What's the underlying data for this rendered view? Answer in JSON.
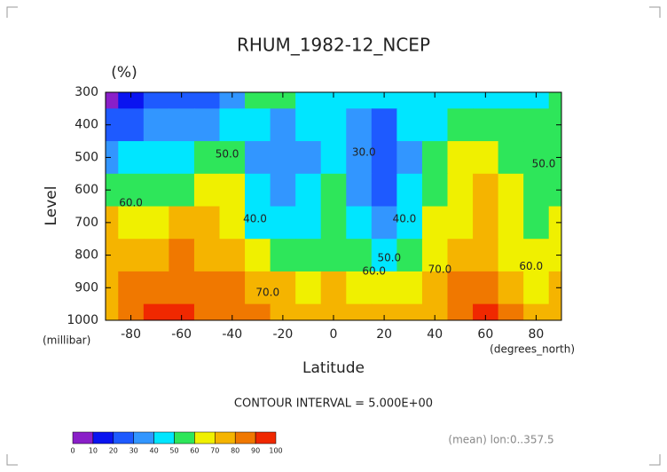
{
  "chart_data": {
    "type": "heatmap",
    "title": "RHUM_1982-12_NCEP",
    "unit": "(%)",
    "xlabel": "Latitude",
    "ylabel": "Level",
    "x_unit": "(degrees_north)",
    "y_unit": "(millibar)",
    "footnote": "CONTOUR INTERVAL = 5.000E+00",
    "note": "(mean) lon:0..357.5",
    "x": [
      -90,
      -80,
      -70,
      -60,
      -50,
      -40,
      -30,
      -20,
      -10,
      0,
      10,
      20,
      30,
      40,
      50,
      60,
      70,
      80,
      90
    ],
    "y": [
      300,
      400,
      500,
      600,
      700,
      800,
      900,
      1000
    ],
    "z": [
      [
        8,
        15,
        20,
        22,
        25,
        30,
        50,
        50,
        45,
        48,
        45,
        42,
        48,
        48,
        48,
        45,
        45,
        48,
        50
      ],
      [
        25,
        28,
        30,
        32,
        35,
        40,
        40,
        38,
        42,
        45,
        35,
        28,
        40,
        48,
        55,
        55,
        52,
        50,
        52
      ],
      [
        38,
        40,
        42,
        45,
        50,
        55,
        38,
        32,
        38,
        48,
        32,
        25,
        38,
        55,
        60,
        60,
        58,
        52,
        55
      ],
      [
        52,
        55,
        55,
        58,
        62,
        60,
        40,
        35,
        40,
        50,
        35,
        25,
        40,
        58,
        65,
        70,
        62,
        50,
        55
      ],
      [
        70,
        62,
        65,
        70,
        72,
        65,
        45,
        42,
        45,
        55,
        40,
        32,
        45,
        62,
        68,
        72,
        65,
        55,
        60
      ],
      [
        72,
        75,
        78,
        80,
        78,
        70,
        62,
        55,
        52,
        58,
        50,
        48,
        52,
        68,
        72,
        75,
        68,
        60,
        62
      ],
      [
        75,
        82,
        85,
        88,
        85,
        80,
        72,
        70,
        68,
        70,
        68,
        65,
        65,
        75,
        82,
        85,
        78,
        68,
        70
      ],
      [
        78,
        85,
        90,
        92,
        88,
        85,
        80,
        78,
        78,
        78,
        75,
        72,
        72,
        78,
        88,
        90,
        82,
        72,
        75
      ]
    ],
    "xlim": [
      -90,
      90
    ],
    "ylim": [
      1000,
      300
    ],
    "xticks": [
      -80,
      -60,
      -40,
      -20,
      0,
      20,
      40,
      60,
      80
    ],
    "yticks": [
      300,
      400,
      500,
      600,
      700,
      800,
      900,
      1000
    ],
    "levels": [
      0,
      10,
      20,
      30,
      40,
      50,
      60,
      70,
      80,
      90,
      100
    ],
    "colors": [
      "#8a1fc8",
      "#0a14f0",
      "#1e5aff",
      "#3296ff",
      "#00e6ff",
      "#2ee65a",
      "#f0f000",
      "#f5b400",
      "#f07800",
      "#f02800"
    ],
    "contour_labels": [
      {
        "label": "60.0",
        "x": -80,
        "y": 640
      },
      {
        "label": "50.0",
        "x": -42,
        "y": 490
      },
      {
        "label": "40.0",
        "x": -31,
        "y": 690
      },
      {
        "label": "70.0",
        "x": -26,
        "y": 915
      },
      {
        "label": "30.0",
        "x": 12,
        "y": 485
      },
      {
        "label": "40.0",
        "x": 28,
        "y": 690
      },
      {
        "label": "50.0",
        "x": 22,
        "y": 810
      },
      {
        "label": "60.0",
        "x": 16,
        "y": 850
      },
      {
        "label": "70.0",
        "x": 42,
        "y": 845
      },
      {
        "label": "50.0",
        "x": 83,
        "y": 520
      },
      {
        "label": "60.0",
        "x": 78,
        "y": 835
      }
    ]
  }
}
